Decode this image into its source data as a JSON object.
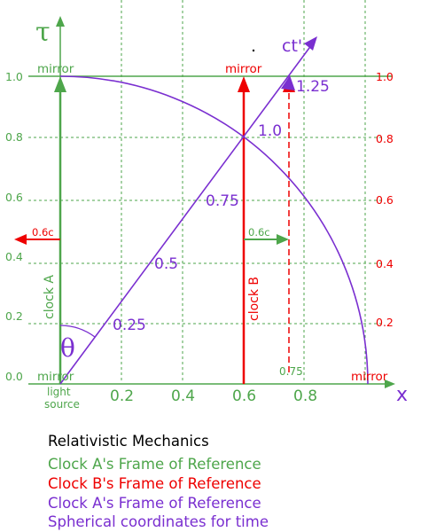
{
  "axes": {
    "x_label": "x",
    "tau_label": "τ",
    "ct_prime_label": "ct'",
    "x_ticks": [
      "0.2",
      "0.4",
      "0.6",
      "0.8"
    ],
    "left_ticks": [
      "0.0",
      "0.2",
      "0.4",
      "0.6",
      "0.8",
      "1.0"
    ],
    "right_ticks": [
      "0.2",
      "0.4",
      "0.6",
      "0.8",
      "1.0"
    ]
  },
  "labels": {
    "mirror_top_a": "mirror",
    "mirror_top_b": "mirror",
    "mirror_bottom_a": "mirror",
    "mirror_bottom_right": "mirror",
    "light_source_line1": "light",
    "light_source_line2": "source",
    "clock_a": "clock A",
    "clock_b": "clock B",
    "velocity_left": "0.6c",
    "velocity_right": "0.6c",
    "theta": "θ",
    "tick_075": "0.75"
  },
  "ct_prime_marks": [
    "0.25",
    "0.5",
    "0.75",
    "1.0",
    "1.25"
  ],
  "captions": {
    "title": "Relativistic Mechanics",
    "line1": "Clock A's Frame of Reference",
    "line2": "Clock B's Frame of Reference",
    "line3": "Clock A's Frame of Reference",
    "line4": "Spherical coordinates for time"
  },
  "colors": {
    "green": "#4ea64b",
    "red": "#ee0000",
    "purple": "#7a2fd0",
    "black": "#000000"
  }
}
